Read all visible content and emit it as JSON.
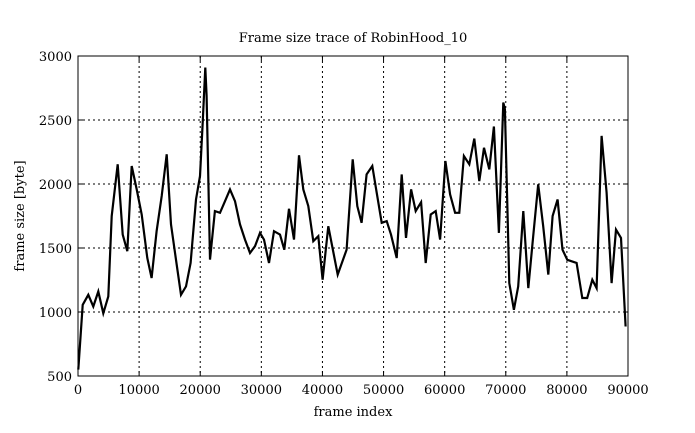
{
  "chart_data": {
    "type": "line",
    "title": "Frame size trace of RobinHood_10",
    "xlabel": "frame index",
    "ylabel": "frame size [byte]",
    "xlim": [
      0,
      90000
    ],
    "ylim": [
      500,
      3000
    ],
    "xticks": [
      0,
      10000,
      20000,
      30000,
      40000,
      50000,
      60000,
      70000,
      80000,
      90000
    ],
    "yticks": [
      500,
      1000,
      1500,
      2000,
      2500,
      3000
    ],
    "grid": true,
    "line_color": "#000000",
    "series": [
      {
        "x": [
          55,
          770,
          1690,
          2510,
          3330,
          4140,
          4960,
          5510,
          6490,
          7310,
          8070,
          8780,
          9600,
          10420,
          11340,
          12050,
          12870,
          13690,
          14510,
          15220,
          16040,
          16860,
          17670,
          18430,
          19310,
          19960,
          20400,
          20830,
          21050,
          21600,
          22410,
          23230,
          24050,
          24870,
          25690,
          26510,
          27320,
          28140,
          28960,
          29780,
          30430,
          31250,
          32070,
          33050,
          33760,
          34520,
          35340,
          36160,
          36870,
          37690,
          38510,
          39320,
          40030,
          40960,
          42490,
          43960,
          44950,
          45700,
          46410,
          47230,
          48160,
          48870,
          49690,
          50510,
          51220,
          52150,
          52970,
          53680,
          54500,
          55260,
          56140,
          56900,
          57720,
          58540,
          59250,
          60120,
          60890,
          61710,
          62390,
          63150,
          64030,
          64850,
          65660,
          66430,
          67300,
          68060,
          68880,
          69590,
          69860,
          70570,
          71330,
          72040,
          72860,
          73680,
          74490,
          75310,
          76130,
          76950,
          77660,
          78480,
          79290,
          80060,
          81590,
          82520,
          83330,
          84150,
          84860,
          85680,
          86500,
          87320,
          88030,
          88850,
          89610
        ],
        "y": [
          550,
          1056,
          1134,
          1043,
          1160,
          990,
          1121,
          1749,
          2154,
          1605,
          1475,
          2141,
          1958,
          1762,
          1422,
          1266,
          1631,
          1906,
          2232,
          1684,
          1408,
          1134,
          1200,
          1383,
          1879,
          2062,
          2480,
          2910,
          2690,
          1409,
          1788,
          1775,
          1866,
          1958,
          1866,
          1684,
          1566,
          1461,
          1514,
          1618,
          1566,
          1383,
          1631,
          1605,
          1487,
          1806,
          1566,
          2224,
          1958,
          1827,
          1553,
          1592,
          1252,
          1670,
          1292,
          1487,
          2193,
          1827,
          1697,
          2075,
          2141,
          1932,
          1697,
          1710,
          1605,
          1422,
          2075,
          1579,
          1958,
          1788,
          1858,
          1383,
          1762,
          1788,
          1566,
          2180,
          1919,
          1775,
          1775,
          2219,
          2154,
          2355,
          2023,
          2283,
          2114,
          2449,
          1618,
          2637,
          2585,
          1226,
          1017,
          1200,
          1788,
          1187,
          1592,
          1997,
          1670,
          1292,
          1749,
          1879,
          1487,
          1408,
          1383,
          1109,
          1109,
          1252,
          1187,
          2376,
          1932,
          1226,
          1644,
          1579,
          887
        ]
      }
    ]
  }
}
